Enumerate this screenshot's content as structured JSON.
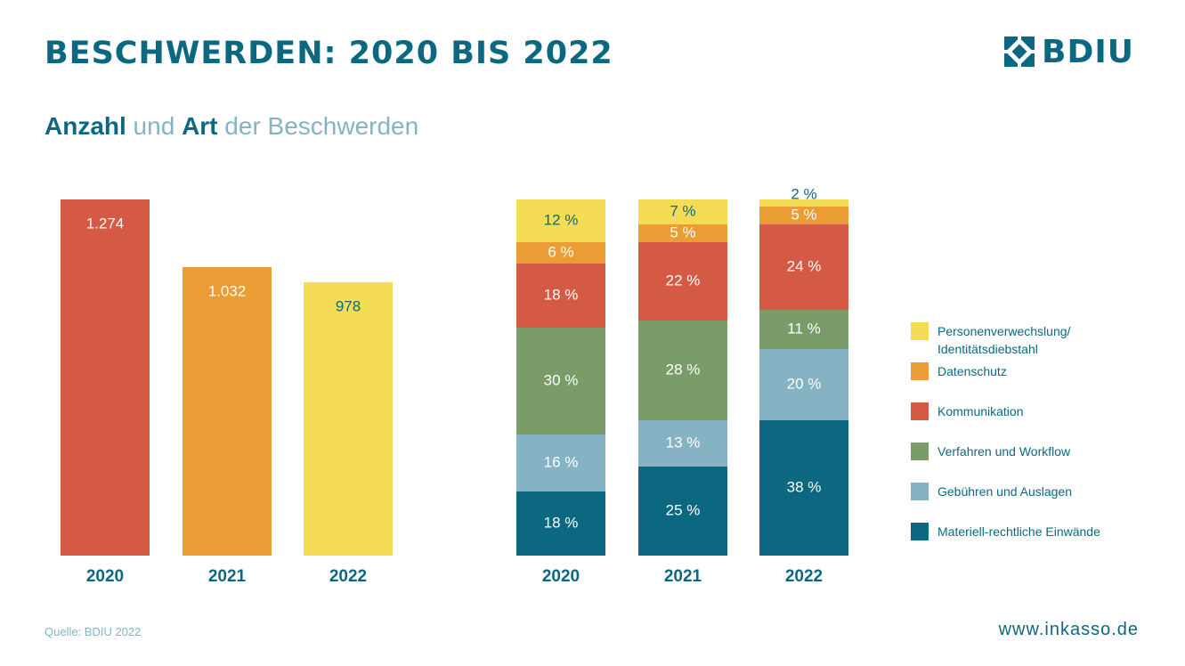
{
  "header": {
    "title": "BESCHWERDEN: 2020 BIS 2022",
    "logo_text": "BDIU"
  },
  "subtitle": {
    "part1": "Anzahl",
    "part2": " und ",
    "part3": "Art",
    "part4": " der Beschwerden"
  },
  "chart_data": [
    {
      "type": "bar",
      "title": "Anzahl der Beschwerden",
      "categories": [
        "2020",
        "2021",
        "2022"
      ],
      "values": [
        1274,
        1032,
        978
      ],
      "value_labels": [
        "1.274",
        "1.032",
        "978"
      ],
      "colors": [
        "#d45a46",
        "#eb9d35",
        "#f4dd55"
      ],
      "label_colors": [
        "#ffffff",
        "#ffffff",
        "#0c6880"
      ],
      "ylim": [
        0,
        1274
      ]
    },
    {
      "type": "bar",
      "stacked": true,
      "title": "Art der Beschwerden",
      "categories": [
        "2020",
        "2021",
        "2022"
      ],
      "ylim": [
        0,
        100
      ],
      "series": [
        {
          "name": "Materiell-rechtliche Einwände",
          "color": "#0c6880",
          "label_color": "#ffffff",
          "values": [
            18,
            25,
            38
          ],
          "labels": [
            "18 %",
            "25 %",
            "38 %"
          ]
        },
        {
          "name": "Gebühren und Auslagen",
          "color": "#86b3c3",
          "label_color": "#ffffff",
          "values": [
            16,
            13,
            20
          ],
          "labels": [
            "16 %",
            "13 %",
            "20 %"
          ]
        },
        {
          "name": "Verfahren und Workflow",
          "color": "#7a9c69",
          "label_color": "#ffffff",
          "values": [
            30,
            28,
            11
          ],
          "labels": [
            "30 %",
            "28 %",
            "11 %"
          ]
        },
        {
          "name": "Kommunikation",
          "color": "#d45a46",
          "label_color": "#ffffff",
          "values": [
            18,
            22,
            24
          ],
          "labels": [
            "18 %",
            "22 %",
            "24 %"
          ]
        },
        {
          "name": "Datenschutz",
          "color": "#eb9d35",
          "label_color": "#ffffff",
          "values": [
            6,
            5,
            5
          ],
          "labels": [
            "6 %",
            "5 %",
            "5 %"
          ]
        },
        {
          "name": "Personenverwechslung/ Identitätsdiebstahl",
          "color": "#f4dd55",
          "label_color": "#0c6880",
          "values": [
            12,
            7,
            2
          ],
          "labels": [
            "12 %",
            "7 %",
            "2 %"
          ]
        }
      ]
    }
  ],
  "legend": [
    {
      "label": "Personenverwechslung/\nIdentitätsdiebstahl",
      "color": "#f4dd55"
    },
    {
      "label": "Datenschutz",
      "color": "#eb9d35"
    },
    {
      "label": "Kommunikation",
      "color": "#d45a46"
    },
    {
      "label": "Verfahren und Workflow",
      "color": "#7a9c69"
    },
    {
      "label": "Gebühren und Auslagen",
      "color": "#86b3c3"
    },
    {
      "label": "Materiell-rechtliche Einwände",
      "color": "#0c6880"
    }
  ],
  "footer": {
    "source": "Quelle: BDIU 2022",
    "url": "www.inkasso.de"
  }
}
